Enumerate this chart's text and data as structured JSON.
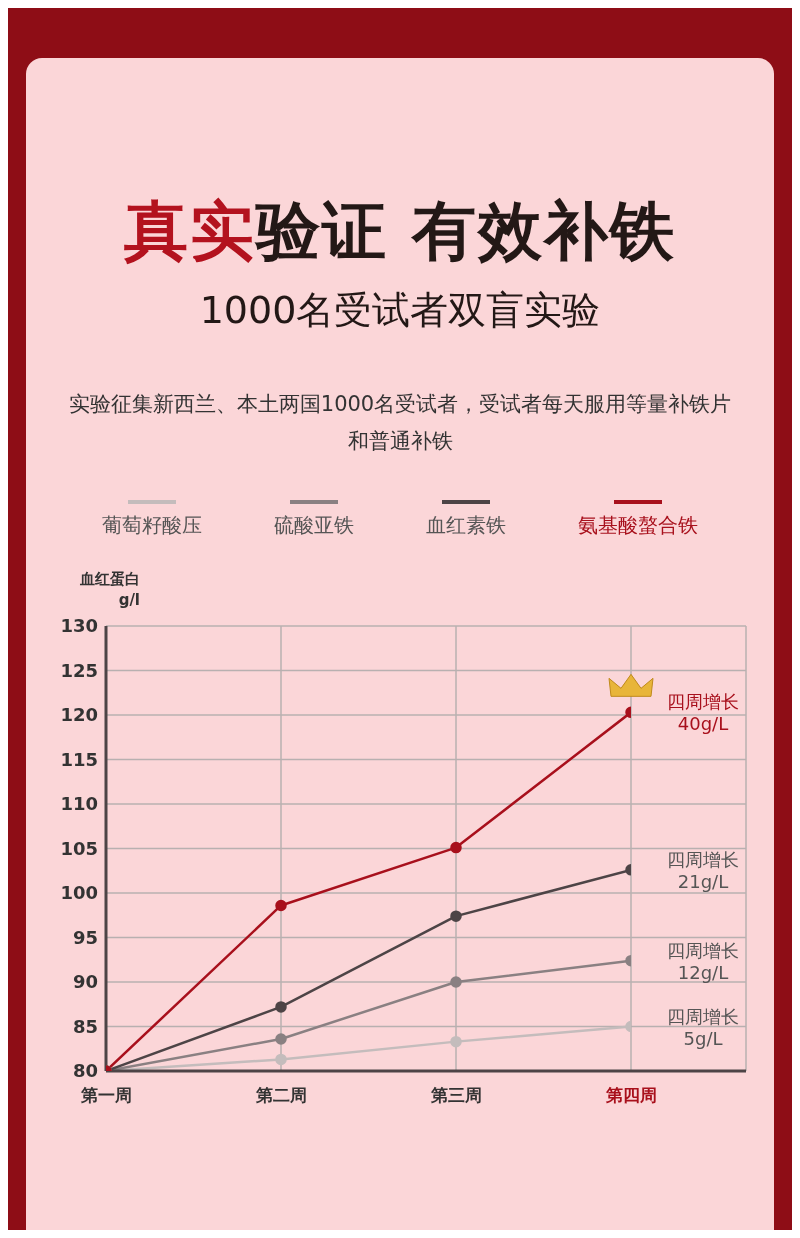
{
  "chart_data": {
    "type": "line",
    "title": "真实验证 有效补铁",
    "subtitle": "1000名受试者双盲实验",
    "annotations": [
      "实验征集新西兰、本土两国1000名受试者，受试者每天服用等量补铁片和普通补铁",
      {
        "text": "四周增长\n40g/L",
        "x": "第四周",
        "y": 120.3
      },
      {
        "text": "四周增长\n21g/L",
        "x": "第四周",
        "y": 102.6
      },
      {
        "text": "四周增长\n12g/L",
        "x": "第四周",
        "y": 92.4
      },
      {
        "text": "四周增长\n5g/L",
        "x": "第四周",
        "y": 85.0
      }
    ],
    "ylabel": "血红蛋白\ng/l",
    "categories": [
      "第一周",
      "第二周",
      "第三周",
      "第四周"
    ],
    "series": [
      {
        "name": "葡萄籽酸压",
        "color": "#c4bcbc",
        "values": [
          80,
          81.3,
          83.3,
          85.0
        ]
      },
      {
        "name": "硫酸亚铁",
        "color": "#8a8082",
        "values": [
          80,
          83.6,
          90.0,
          92.4
        ]
      },
      {
        "name": "血红素铁",
        "color": "#4d4446",
        "values": [
          80,
          87.2,
          97.4,
          102.6
        ]
      },
      {
        "name": "氨基酸螯合铁",
        "color": "#a8101c",
        "values": [
          80,
          98.6,
          105.1,
          120.3
        ]
      }
    ],
    "ylim": [
      80,
      130
    ],
    "yticks": [
      80,
      85,
      90,
      95,
      100,
      105,
      110,
      115,
      120,
      125,
      130
    ],
    "grid": true,
    "legend": "top",
    "marker": "circle",
    "line_style": "solid"
  }
}
